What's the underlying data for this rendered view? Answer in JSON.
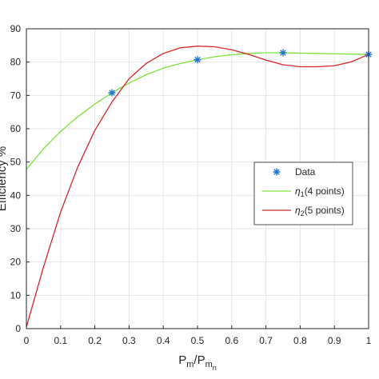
{
  "chart_data": {
    "type": "line",
    "xlabel": {
      "main": "P",
      "sub1": "m",
      "slash": "/P",
      "sub2": "m",
      "sub2b": "n"
    },
    "ylabel": "Efficiency %",
    "xlim": [
      0,
      1
    ],
    "ylim": [
      0,
      90
    ],
    "xticks": [
      0,
      0.1,
      0.2,
      0.3,
      0.4,
      0.5,
      0.6,
      0.7,
      0.8,
      0.9,
      1
    ],
    "xtick_labels": [
      "0",
      "0.1",
      "0.2",
      "0.3",
      "0.4",
      "0.5",
      "0.6",
      "0.7",
      "0.8",
      "0.9",
      "1"
    ],
    "yticks": [
      0,
      10,
      20,
      30,
      40,
      50,
      60,
      70,
      80,
      90
    ],
    "ytick_labels": [
      "0",
      "10",
      "20",
      "30",
      "40",
      "50",
      "60",
      "70",
      "80",
      "90"
    ],
    "grid": true,
    "legend_position": "right",
    "series": [
      {
        "name": "Data",
        "kind": "marker",
        "color": "#1f77d4",
        "x": [
          0.25,
          0.5,
          0.75,
          1.0
        ],
        "y": [
          70.8,
          80.7,
          82.8,
          82.3
        ]
      },
      {
        "name": "η1(4 points)",
        "legend": {
          "greek": "η",
          "sub": "1",
          "rest": "(4 points)"
        },
        "kind": "line",
        "color": "#7ee03a",
        "x": [
          0,
          0.05,
          0.1,
          0.15,
          0.2,
          0.25,
          0.3,
          0.35,
          0.4,
          0.45,
          0.5,
          0.55,
          0.6,
          0.65,
          0.7,
          0.75,
          0.8,
          0.85,
          0.9,
          0.95,
          1.0
        ],
        "y": [
          47.8,
          54.0,
          59.2,
          63.6,
          67.4,
          70.8,
          73.7,
          76.2,
          78.2,
          79.6,
          80.7,
          81.6,
          82.2,
          82.6,
          82.8,
          82.8,
          82.7,
          82.6,
          82.5,
          82.4,
          82.3
        ]
      },
      {
        "name": "η2(5 points)",
        "legend": {
          "greek": "η",
          "sub": "2",
          "rest": "(5 points)"
        },
        "kind": "line",
        "color": "#d62728",
        "x": [
          0,
          0.05,
          0.1,
          0.15,
          0.2,
          0.25,
          0.3,
          0.35,
          0.4,
          0.45,
          0.5,
          0.55,
          0.6,
          0.65,
          0.7,
          0.75,
          0.8,
          0.85,
          0.9,
          0.95,
          1.0
        ],
        "y": [
          0.5,
          18.5,
          35.0,
          48.5,
          59.5,
          68.0,
          75.0,
          79.6,
          82.6,
          84.3,
          84.8,
          84.6,
          83.7,
          82.3,
          80.6,
          79.2,
          78.6,
          78.6,
          78.9,
          80.1,
          82.3
        ]
      }
    ]
  }
}
